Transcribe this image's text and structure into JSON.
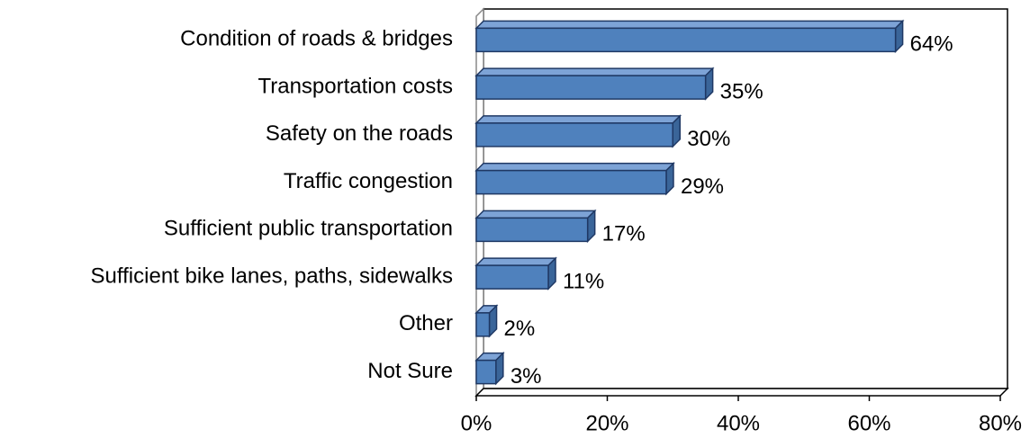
{
  "chart_data": {
    "type": "bar",
    "orientation": "horizontal",
    "categories": [
      "Condition of roads & bridges",
      "Transportation costs",
      "Safety on the roads",
      "Traffic congestion",
      "Sufficient public transportation",
      "Sufficient bike lanes, paths, sidewalks",
      "Other",
      "Not Sure"
    ],
    "values": [
      64,
      35,
      30,
      29,
      17,
      11,
      2,
      3
    ],
    "value_labels": [
      "64%",
      "35%",
      "30%",
      "29%",
      "17%",
      "11%",
      "2%",
      "3%"
    ],
    "color": "#4f81bd",
    "xlim": [
      0,
      80
    ],
    "xticks": [
      {
        "value": 0,
        "label": "0%"
      },
      {
        "value": 20,
        "label": "20%"
      },
      {
        "value": 40,
        "label": "40%"
      },
      {
        "value": 60,
        "label": "60%"
      },
      {
        "value": 80,
        "label": "80%"
      }
    ],
    "grid": false
  }
}
